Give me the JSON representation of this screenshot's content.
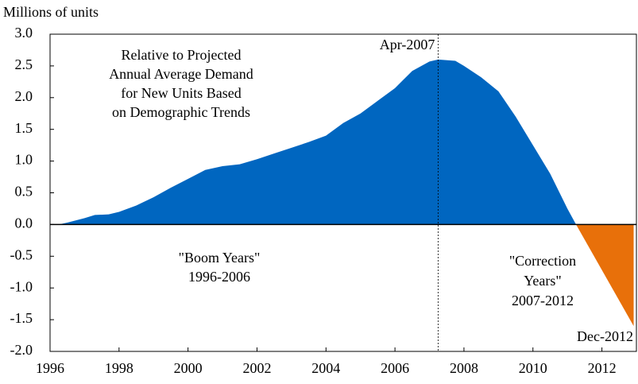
{
  "chart_data": {
    "type": "area",
    "y_label": "Millions of units",
    "x": [
      1996.25,
      1996.5,
      1997,
      1997.3,
      1997.7,
      1998,
      1998.5,
      1999,
      1999.5,
      2000,
      2000.5,
      2001,
      2001.5,
      2002,
      2002.5,
      2003,
      2003.5,
      2004,
      2004.5,
      2005,
      2005.5,
      2006,
      2006.5,
      2007,
      2007.25,
      2007.75,
      2008,
      2008.5,
      2009,
      2009.5,
      2010,
      2010.5,
      2011,
      2011.25,
      2012.92
    ],
    "series": [
      {
        "color": "#0066c0",
        "values": [
          0,
          0.03,
          0.1,
          0.15,
          0.16,
          0.2,
          0.3,
          0.43,
          0.58,
          0.72,
          0.86,
          0.92,
          0.95,
          1.03,
          1.12,
          1.21,
          1.3,
          1.4,
          1.6,
          1.75,
          1.95,
          2.15,
          2.42,
          2.57,
          2.6,
          2.58,
          2.5,
          2.32,
          2.1,
          1.7,
          1.25,
          0.8,
          0.25,
          0,
          null
        ]
      },
      {
        "color": "#e8700a",
        "values": [
          null,
          null,
          null,
          null,
          null,
          null,
          null,
          null,
          null,
          null,
          null,
          null,
          null,
          null,
          null,
          null,
          null,
          null,
          null,
          null,
          null,
          null,
          null,
          null,
          null,
          null,
          null,
          null,
          null,
          null,
          null,
          null,
          null,
          0,
          -1.6
        ]
      }
    ],
    "xlim": [
      1996,
      2013
    ],
    "ylim": [
      -2,
      3
    ],
    "xticks": [
      1996,
      1998,
      2000,
      2002,
      2004,
      2006,
      2008,
      2010,
      2012
    ],
    "yticks": [
      {
        "value": 3,
        "label": "3.0"
      },
      2.5,
      {
        "value": 2,
        "label": "2.0"
      },
      1.5,
      {
        "value": 1,
        "label": "1.0"
      },
      0.5,
      {
        "value": 0,
        "label": "0.0"
      },
      -0.5,
      {
        "value": -1,
        "label": "-1.0"
      },
      -1.5,
      {
        "value": -2,
        "label": "-2.0"
      }
    ],
    "vline": {
      "x": 2007.25,
      "label": "Apr-2007"
    },
    "end_label": "Dec-2012",
    "note_lines": [
      "Relative to Projected",
      "Annual Average Demand",
      "for New Units Based",
      "on Demographic Trends"
    ],
    "boom_lines": [
      "\"Boom Years\"",
      "1996-2006"
    ],
    "correction_lines": [
      "\"Correction",
      "Years\"",
      "2007-2012"
    ]
  }
}
